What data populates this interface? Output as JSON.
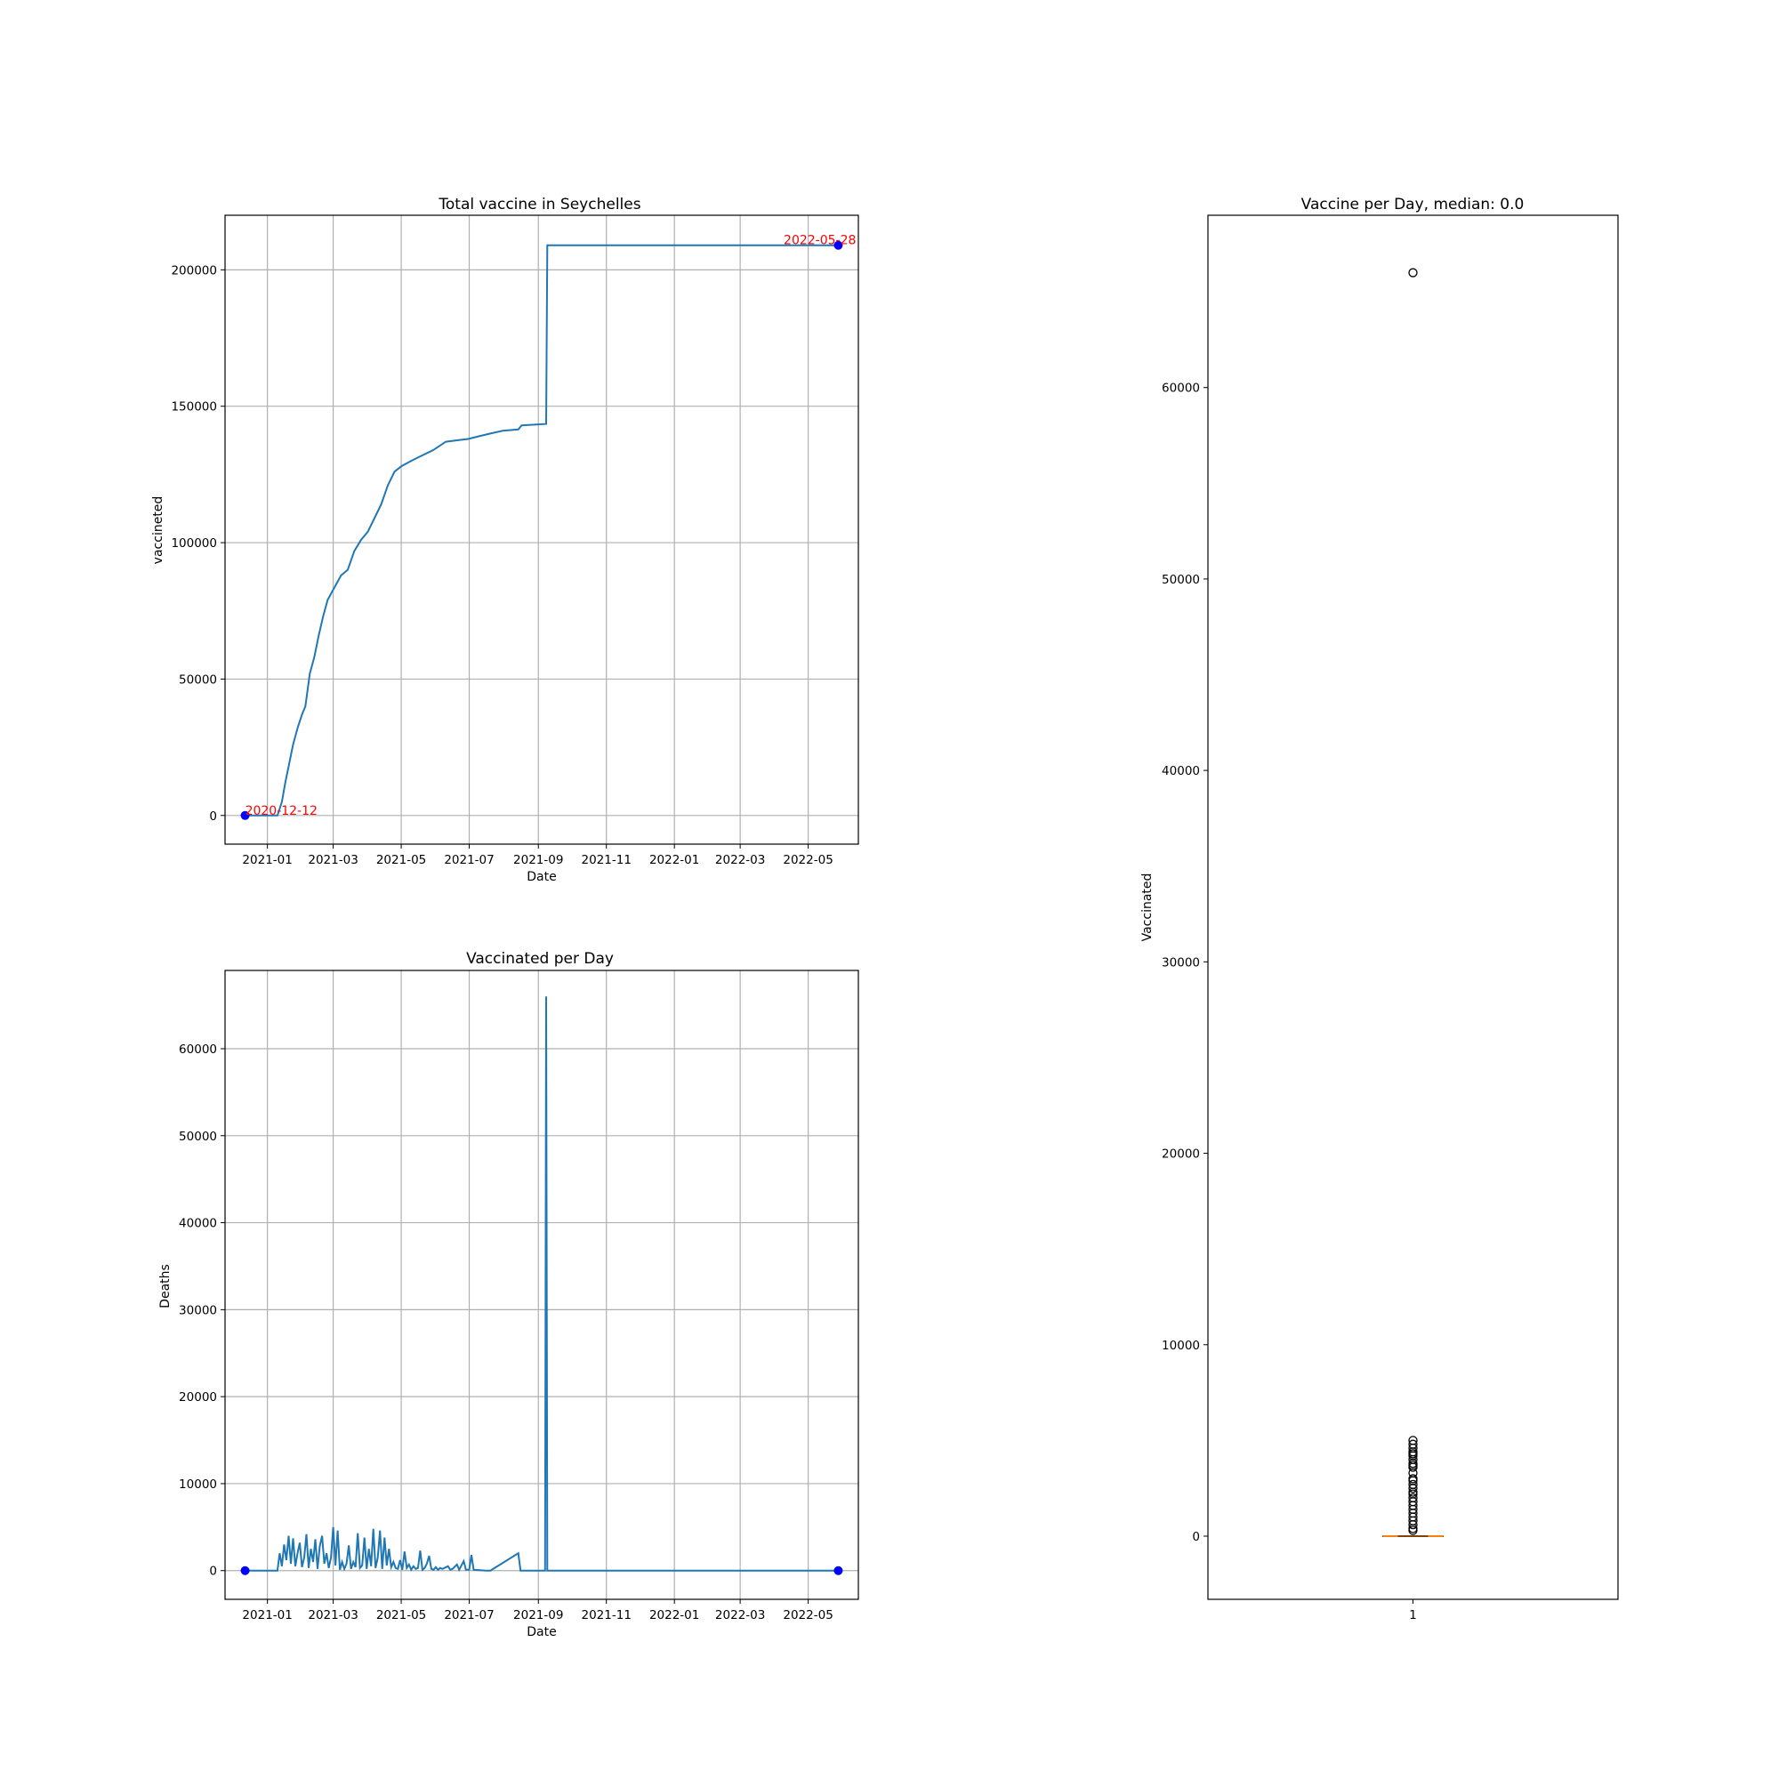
{
  "chart_data": [
    {
      "type": "line",
      "title": "Total vaccine in Seychelles",
      "xlabel": "Date",
      "ylabel": "vaccineted",
      "grid": true,
      "x_ticks": [
        "2021-01",
        "2021-03",
        "2021-05",
        "2021-07",
        "2021-09",
        "2021-11",
        "2022-01",
        "2022-03",
        "2022-05"
      ],
      "y_ticks": [
        "0",
        "50000",
        "100000",
        "150000",
        "200000"
      ],
      "xlim": [
        "2020-11-24",
        "2022-06-15"
      ],
      "ylim": [
        -10500,
        220000
      ],
      "series_color": "#1f77b4",
      "marker_color": "#0000ff",
      "annotation_color": "#ff0000",
      "x": [
        "2020-12-12",
        "2021-01-10",
        "2021-01-14",
        "2021-01-17",
        "2021-01-20",
        "2021-01-24",
        "2021-01-28",
        "2021-02-01",
        "2021-02-04",
        "2021-02-08",
        "2021-02-12",
        "2021-02-16",
        "2021-02-20",
        "2021-02-24",
        "2021-02-28",
        "2021-03-04",
        "2021-03-08",
        "2021-03-14",
        "2021-03-20",
        "2021-03-26",
        "2021-04-01",
        "2021-04-07",
        "2021-04-13",
        "2021-04-19",
        "2021-04-25",
        "2021-05-01",
        "2021-05-10",
        "2021-05-20",
        "2021-05-30",
        "2021-06-10",
        "2021-06-20",
        "2021-06-30",
        "2021-07-10",
        "2021-07-20",
        "2021-07-31",
        "2021-08-14",
        "2021-08-17",
        "2021-09-08",
        "2021-09-09",
        "2022-05-28"
      ],
      "y": [
        0,
        0,
        5000,
        12000,
        18000,
        26000,
        32000,
        37000,
        40000,
        52000,
        58000,
        66000,
        73000,
        79000,
        82000,
        85000,
        88000,
        90000,
        97000,
        101000,
        104000,
        109000,
        114000,
        121000,
        126000,
        128000,
        130000,
        132000,
        134000,
        137000,
        137500,
        138000,
        139000,
        140000,
        141000,
        141500,
        143000,
        143500,
        209000,
        209000
      ],
      "annotations": [
        {
          "text": "2020-12-12",
          "x": "2020-12-12",
          "y": 0
        },
        {
          "text": "2022-05-28",
          "x": "2022-05-28",
          "y": 209000
        }
      ]
    },
    {
      "type": "line",
      "title": "Vaccinated per Day",
      "xlabel": "Date",
      "ylabel": "Deaths",
      "grid": true,
      "x_ticks": [
        "2021-01",
        "2021-03",
        "2021-05",
        "2021-07",
        "2021-09",
        "2021-11",
        "2022-01",
        "2022-03",
        "2022-05"
      ],
      "y_ticks": [
        "0",
        "10000",
        "20000",
        "30000",
        "40000",
        "50000",
        "60000"
      ],
      "xlim": [
        "2020-11-24",
        "2022-06-15"
      ],
      "ylim": [
        -3300,
        69000
      ],
      "series_color": "#1f77b4",
      "marker_color": "#0000ff",
      "x": [
        "2020-12-12",
        "2021-01-10",
        "2021-01-12",
        "2021-01-14",
        "2021-01-16",
        "2021-01-18",
        "2021-01-20",
        "2021-01-22",
        "2021-01-24",
        "2021-01-26",
        "2021-01-28",
        "2021-01-30",
        "2021-02-01",
        "2021-02-03",
        "2021-02-05",
        "2021-02-07",
        "2021-02-09",
        "2021-02-11",
        "2021-02-13",
        "2021-02-15",
        "2021-02-17",
        "2021-02-19",
        "2021-02-21",
        "2021-02-23",
        "2021-02-25",
        "2021-02-27",
        "2021-03-01",
        "2021-03-03",
        "2021-03-05",
        "2021-03-07",
        "2021-03-09",
        "2021-03-11",
        "2021-03-13",
        "2021-03-15",
        "2021-03-17",
        "2021-03-19",
        "2021-03-21",
        "2021-03-23",
        "2021-03-25",
        "2021-03-27",
        "2021-03-29",
        "2021-03-31",
        "2021-04-02",
        "2021-04-04",
        "2021-04-06",
        "2021-04-08",
        "2021-04-10",
        "2021-04-12",
        "2021-04-14",
        "2021-04-16",
        "2021-04-18",
        "2021-04-20",
        "2021-04-22",
        "2021-04-24",
        "2021-04-26",
        "2021-04-28",
        "2021-04-30",
        "2021-05-02",
        "2021-05-04",
        "2021-05-06",
        "2021-05-08",
        "2021-05-10",
        "2021-05-12",
        "2021-05-14",
        "2021-05-16",
        "2021-05-18",
        "2021-05-20",
        "2021-05-22",
        "2021-05-24",
        "2021-05-26",
        "2021-05-28",
        "2021-05-30",
        "2021-06-01",
        "2021-06-03",
        "2021-06-05",
        "2021-06-07",
        "2021-06-12",
        "2021-06-14",
        "2021-06-16",
        "2021-06-20",
        "2021-06-22",
        "2021-06-26",
        "2021-06-28",
        "2021-07-01",
        "2021-07-03",
        "2021-07-05",
        "2021-07-16",
        "2021-07-18",
        "2021-07-20",
        "2021-08-14",
        "2021-08-16",
        "2021-08-18",
        "2021-09-07",
        "2021-09-08",
        "2021-09-09",
        "2021-09-10",
        "2022-05-28"
      ],
      "y": [
        0,
        0,
        2000,
        500,
        3000,
        1200,
        4000,
        800,
        3700,
        500,
        2000,
        3200,
        400,
        1500,
        4200,
        300,
        2500,
        1000,
        3600,
        200,
        2800,
        4000,
        800,
        2000,
        300,
        1500,
        5000,
        600,
        4600,
        100,
        1000,
        200,
        800,
        2900,
        200,
        1000,
        400,
        4300,
        300,
        600,
        3800,
        200,
        2500,
        500,
        4800,
        300,
        1500,
        4600,
        200,
        3800,
        600,
        2500,
        400,
        1000,
        300,
        200,
        1200,
        100,
        2200,
        300,
        700,
        100,
        500,
        200,
        300,
        2300,
        100,
        300,
        800,
        1700,
        200,
        100,
        400,
        100,
        300,
        200,
        500,
        100,
        200,
        700,
        100,
        1100,
        100,
        100,
        1800,
        100,
        0,
        0,
        0,
        2000,
        0,
        0,
        0,
        66000,
        0,
        0,
        0
      ],
      "end_markers": [
        {
          "x": "2020-12-12",
          "y": 0
        },
        {
          "x": "2022-05-28",
          "y": 0
        }
      ]
    },
    {
      "type": "box",
      "title": "Vaccine per Day, median: 0.0",
      "xlabel": "",
      "ylabel": "Vaccinated",
      "grid": false,
      "x_ticks": [
        "1"
      ],
      "y_ticks": [
        "0",
        "10000",
        "20000",
        "30000",
        "40000",
        "50000",
        "60000"
      ],
      "ylim": [
        -3300,
        69000
      ],
      "median": 0,
      "q1": 0,
      "q3": 0,
      "whisker_low": 0,
      "whisker_high": 0,
      "median_color": "#ff7f0e",
      "outliers": [
        66000,
        5000,
        4800,
        4600,
        4400,
        4300,
        4200,
        4000,
        3800,
        3700,
        3600,
        3300,
        3000,
        2900,
        2700,
        2500,
        2300,
        2200,
        2000,
        1800,
        1600,
        1400,
        1200,
        1000,
        800,
        600,
        400,
        300
      ]
    }
  ]
}
